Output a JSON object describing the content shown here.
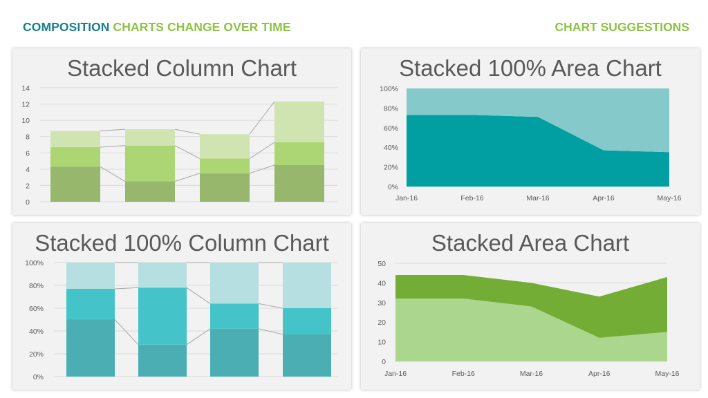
{
  "header": {
    "title_part1": "COMPOSITION",
    "title_part2": "CHARTS CHANGE OVER TIME",
    "right_label": "CHART SUGGESTIONS"
  },
  "colors": {
    "header_teal": "#1a7f8c",
    "header_green": "#8cc342",
    "green_dark": "#97b86c",
    "green_mid": "#acd573",
    "green_light": "#cfe4b1",
    "teal_dark": "#4aaeb3",
    "teal_mid": "#44c4c9",
    "teal_light": "#b5dfe1",
    "area100_dark": "#019fa1",
    "area100_light": "#85c9cb",
    "area_dark": "#73ad35",
    "area_light": "#abd68d"
  },
  "chart_data": [
    {
      "type": "bar",
      "stacked": true,
      "title": "Stacked Column Chart",
      "categories": [
        "",
        "",
        "",
        ""
      ],
      "series": [
        {
          "values": [
            4.3,
            2.5,
            3.5,
            4.5
          ]
        },
        {
          "values": [
            2.4,
            4.4,
            1.8,
            2.8
          ]
        },
        {
          "values": [
            2.0,
            2.0,
            3.0,
            5.0
          ]
        }
      ],
      "ylim": [
        0,
        14
      ],
      "yticks": [
        "0",
        "2",
        "4",
        "6",
        "8",
        "10",
        "12",
        "14"
      ],
      "grid": true,
      "series_lines": true
    },
    {
      "type": "area",
      "stacked": true,
      "percent": true,
      "title": "Stacked 100% Area Chart",
      "categories": [
        "Jan-16",
        "Feb-16",
        "Mar-16",
        "Apr-16",
        "May-16"
      ],
      "series": [
        {
          "values": [
            73,
            73,
            71,
            37,
            35
          ]
        },
        {
          "values": [
            27,
            27,
            29,
            63,
            65
          ]
        }
      ],
      "ylim": [
        0,
        100
      ],
      "yticks": [
        "0%",
        "20%",
        "40%",
        "60%",
        "80%",
        "100%"
      ],
      "grid": false
    },
    {
      "type": "bar",
      "stacked": true,
      "percent": true,
      "title": "Stacked 100% Column Chart",
      "categories": [
        "",
        "",
        "",
        ""
      ],
      "series": [
        {
          "values": [
            50,
            28,
            42,
            37
          ]
        },
        {
          "values": [
            27,
            50,
            22,
            23
          ]
        },
        {
          "values": [
            23,
            22,
            36,
            40
          ]
        }
      ],
      "ylim": [
        0,
        100
      ],
      "yticks": [
        "0%",
        "20%",
        "40%",
        "60%",
        "80%",
        "100%"
      ],
      "grid": true,
      "series_lines": true
    },
    {
      "type": "area",
      "stacked": true,
      "title": "Stacked Area Chart",
      "categories": [
        "Jan-16",
        "Feb-16",
        "Mar-16",
        "Apr-16",
        "May-16"
      ],
      "series": [
        {
          "values": [
            32,
            32,
            28,
            12,
            15
          ]
        },
        {
          "values": [
            12,
            12,
            12,
            21,
            28
          ]
        }
      ],
      "ylim": [
        0,
        50
      ],
      "yticks": [
        "0",
        "10",
        "20",
        "30",
        "40",
        "50"
      ],
      "grid": true
    }
  ]
}
